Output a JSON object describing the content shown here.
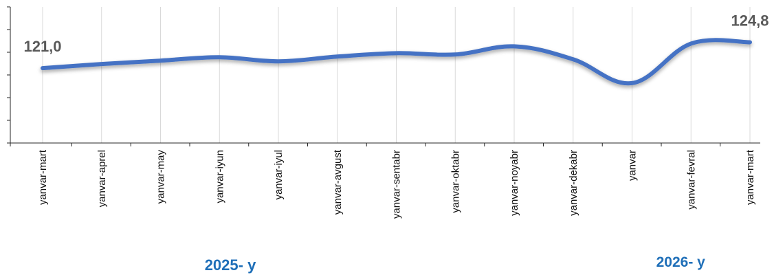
{
  "chart_data": {
    "type": "line",
    "categories": [
      "yanvar-mart",
      "yanvar-aprel",
      "yanvar-may",
      "yanvar-iyun",
      "yanvar-iyul",
      "yanvar-avgust",
      "yanvar-sentabr",
      "yanvar-oktabr",
      "yanvar-noyabr",
      "yanvar-dekabr",
      "yanvar",
      "yanvar-fevral",
      "yanvar-mart"
    ],
    "values": [
      121.0,
      121.6,
      122.1,
      122.6,
      122.0,
      122.7,
      123.2,
      123.0,
      124.2,
      122.3,
      118.8,
      124.6,
      124.8
    ],
    "data_labels": [
      {
        "index": 0,
        "text": "121,0"
      },
      {
        "index": 12,
        "text": "124,8"
      }
    ],
    "year_labels": [
      {
        "text": "2025- y",
        "under_index": 4
      },
      {
        "text": "2026- y",
        "under_index": 11
      }
    ],
    "line_color": "#4472c4",
    "year_label_color": "#1f6fb8",
    "grid": "vertical",
    "legend": "none"
  }
}
